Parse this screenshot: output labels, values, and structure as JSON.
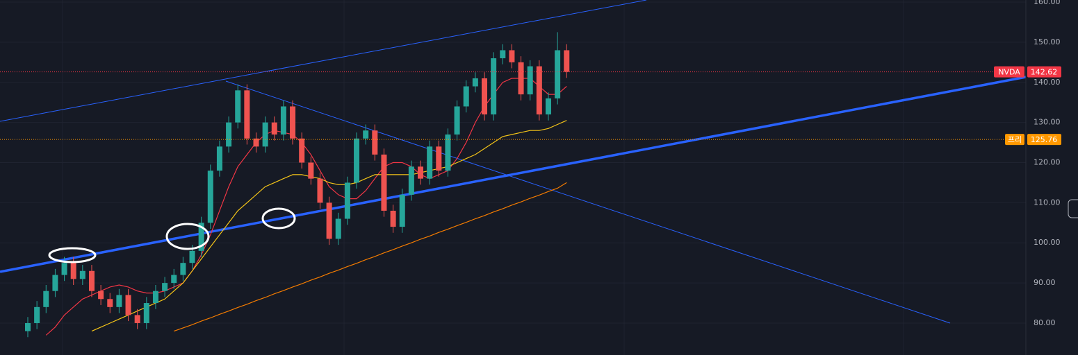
{
  "chart_data": {
    "type": "candlestick",
    "up_color": "#26a69a",
    "down_color": "#ef5350",
    "open": [
      78,
      80,
      84,
      88,
      92,
      95,
      91,
      93,
      88,
      86,
      84,
      87,
      82,
      80,
      85,
      88,
      90,
      92,
      95,
      98,
      105,
      118,
      124,
      130,
      138,
      126,
      124,
      130,
      127,
      134,
      126,
      120,
      116,
      110,
      101,
      106,
      115,
      126,
      128,
      122,
      108,
      104,
      112,
      119,
      116,
      124,
      118,
      127,
      134,
      139,
      141,
      132,
      146,
      148,
      145,
      137,
      144,
      132,
      136,
      148
    ],
    "high": [
      81.5,
      85.5,
      89.5,
      93.5,
      96.5,
      96.5,
      94.5,
      94.5,
      89.5,
      87.5,
      88.5,
      88.5,
      83.5,
      86.5,
      89.5,
      91.5,
      93.5,
      96.5,
      99.5,
      106.5,
      119.5,
      125.5,
      131.5,
      139.5,
      139.5,
      127.5,
      131.5,
      131.5,
      135.5,
      135.5,
      127.5,
      121.5,
      117.5,
      111.5,
      107.5,
      116.5,
      127.5,
      129.5,
      129.5,
      123.5,
      109.5,
      113.5,
      120.5,
      120.5,
      125.5,
      125.5,
      128.5,
      135.5,
      140.5,
      142.5,
      142.5,
      147.5,
      149.5,
      149.5,
      146.5,
      145.5,
      145.5,
      137.5,
      152.5,
      149.5
    ],
    "low": [
      76.5,
      78.5,
      82.5,
      86.5,
      90.5,
      89.5,
      89.5,
      86.5,
      84.5,
      82.5,
      82.5,
      80.5,
      78.5,
      78.5,
      83.5,
      86.5,
      88.5,
      90.5,
      93.5,
      96.5,
      103.5,
      116.5,
      122.5,
      128.5,
      124.5,
      122.5,
      122.5,
      125.5,
      125.5,
      124.5,
      118.5,
      114.5,
      108.5,
      99.5,
      99.5,
      104.5,
      113.5,
      124.5,
      120.5,
      106.5,
      102.5,
      102.5,
      110.5,
      114.5,
      114.5,
      116.5,
      116.5,
      125.5,
      132.5,
      137.5,
      130.5,
      130.5,
      144.5,
      143.5,
      135.5,
      135.5,
      130.5,
      130.5,
      134.5,
      141.1
    ],
    "close": [
      80,
      84,
      88,
      92,
      95,
      91,
      93,
      88,
      86,
      84,
      87,
      82,
      80,
      85,
      88,
      90,
      92,
      95,
      98,
      105,
      118,
      124,
      130,
      138,
      126,
      124,
      130,
      127,
      134,
      126,
      120,
      116,
      110,
      101,
      106,
      115,
      126,
      128,
      122,
      108,
      104,
      112,
      119,
      116,
      124,
      118,
      127,
      134,
      139,
      141,
      132,
      146,
      148,
      145,
      137,
      144,
      132,
      136,
      148,
      142.62
    ],
    "moving_averages": [
      {
        "color": "#f23645",
        "values": [
          null,
          null,
          77,
          79,
          82,
          84,
          86,
          87,
          88,
          89,
          89.5,
          89,
          88,
          87.5,
          87.5,
          88,
          89,
          90,
          93,
          97,
          102,
          108,
          114,
          119,
          122,
          125,
          127,
          128,
          127.5,
          127,
          125,
          122,
          118,
          114,
          112,
          111,
          111,
          113,
          116,
          119,
          120,
          120,
          119,
          117,
          116,
          117,
          118,
          121,
          125,
          130,
          134,
          137,
          140,
          141,
          141,
          141,
          139,
          137,
          137,
          139
        ]
      },
      {
        "color": "#f5c518",
        "values": [
          null,
          null,
          null,
          null,
          null,
          null,
          null,
          78,
          79,
          80,
          81,
          82,
          83,
          84,
          85,
          86,
          88,
          90,
          93,
          96,
          99,
          102,
          105,
          108,
          110,
          112,
          114,
          115,
          116,
          117,
          117,
          116.5,
          116,
          115,
          114.5,
          114.5,
          115,
          116,
          117,
          117,
          117,
          117,
          117,
          117.5,
          118,
          118.5,
          119,
          120,
          121,
          122,
          123.5,
          125,
          126.5,
          127,
          127.5,
          128,
          128,
          128.5,
          129.5,
          130.5
        ]
      },
      {
        "color": "#f57c00",
        "values": [
          null,
          null,
          null,
          null,
          null,
          null,
          null,
          null,
          null,
          null,
          null,
          null,
          null,
          null,
          null,
          null,
          78,
          78.8,
          79.6,
          80.5,
          81.3,
          82.2,
          83,
          83.9,
          84.7,
          85.6,
          86.4,
          87.3,
          88.1,
          89,
          89.8,
          90.7,
          91.5,
          92.4,
          93.2,
          94.1,
          94.9,
          95.8,
          96.6,
          97.5,
          98.3,
          99.2,
          100,
          100.9,
          101.7,
          102.6,
          103.4,
          104.3,
          105.1,
          106,
          106.8,
          107.7,
          108.5,
          109.4,
          110.2,
          111.1,
          111.9,
          112.8,
          113.6,
          115
        ]
      }
    ],
    "ylim": [
      72.05,
      160.52
    ],
    "yticks": [
      {
        "value": 160,
        "label": "160.00"
      },
      {
        "value": 150,
        "label": "150.00"
      },
      {
        "value": 140,
        "label": "140.00"
      },
      {
        "value": 130,
        "label": "130.00"
      },
      {
        "value": 120,
        "label": "120.00"
      },
      {
        "value": 110,
        "label": "110.00"
      },
      {
        "value": 100,
        "label": "100.00"
      },
      {
        "value": 90,
        "label": "90.00"
      },
      {
        "value": 80,
        "label": "80.00"
      }
    ],
    "grid": true,
    "price_lines": [
      {
        "name": "NVDA",
        "value": 142.62,
        "color": "#f23645"
      },
      {
        "name": "프리",
        "value": 125.76,
        "color": "#ff9800"
      }
    ]
  }
}
